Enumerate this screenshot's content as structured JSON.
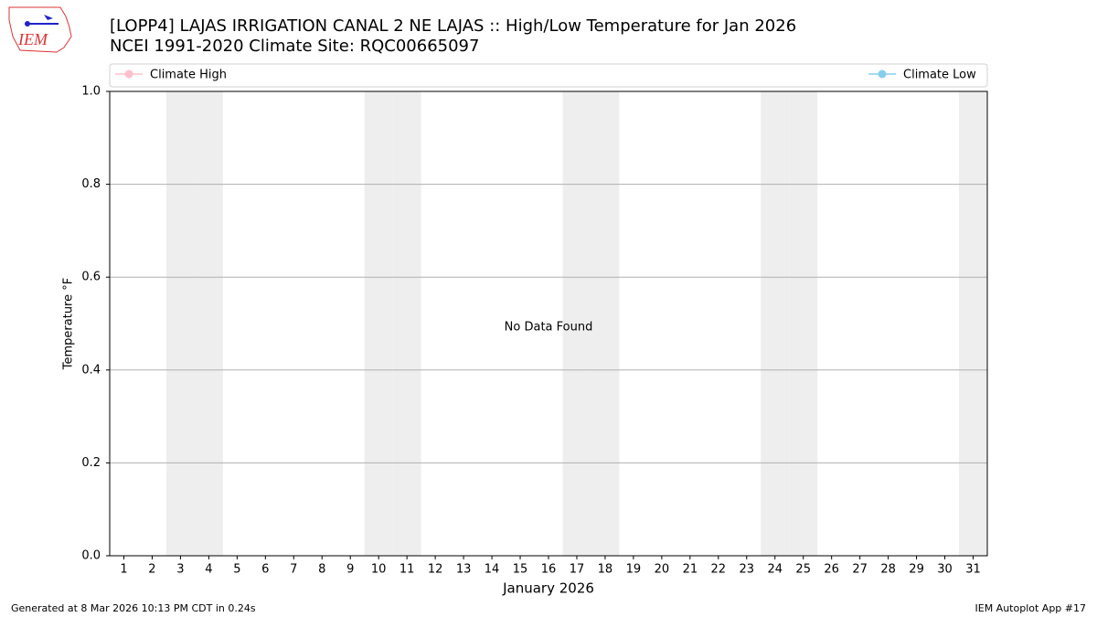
{
  "chart_data": {
    "type": "line",
    "title": "[LOPP4] LAJAS IRRIGATION CANAL 2 NE LAJAS :: High/Low Temperature for Jan 2026",
    "subtitle": "NCEI 1991-2020 Climate Site: RQC00665097",
    "logo_text": "IEM",
    "series": [
      {
        "name": "Climate High",
        "color": "#ffc0cb"
      },
      {
        "name": "Climate Low",
        "color": "#87ceeb"
      }
    ],
    "xlabel": "January 2026",
    "ylabel": "Temperature °F",
    "xlim": [
      0.5,
      31.5
    ],
    "xticks": [
      1,
      2,
      3,
      4,
      5,
      6,
      7,
      8,
      9,
      10,
      11,
      12,
      13,
      14,
      15,
      16,
      17,
      18,
      19,
      20,
      21,
      22,
      23,
      24,
      25,
      26,
      27,
      28,
      29,
      30,
      31
    ],
    "ylim": [
      0,
      1
    ],
    "yticks": [
      {
        "value": 0,
        "label": "0.0"
      },
      {
        "value": 0.2,
        "label": "0.2"
      },
      {
        "value": 0.4,
        "label": "0.4"
      },
      {
        "value": 0.6,
        "label": "0.6"
      },
      {
        "value": 0.8,
        "label": "0.8"
      },
      {
        "value": 1,
        "label": "1.0"
      }
    ],
    "shaded_days": [
      3,
      4,
      10,
      11,
      17,
      18,
      24,
      25,
      31
    ],
    "shade_color": "#eeeeee",
    "grid": true,
    "annotation": "No Data Found",
    "footer_left": "Generated at 8 Mar 2026 10:13 PM CDT in 0.24s",
    "footer_right": "IEM Autoplot App #17"
  }
}
